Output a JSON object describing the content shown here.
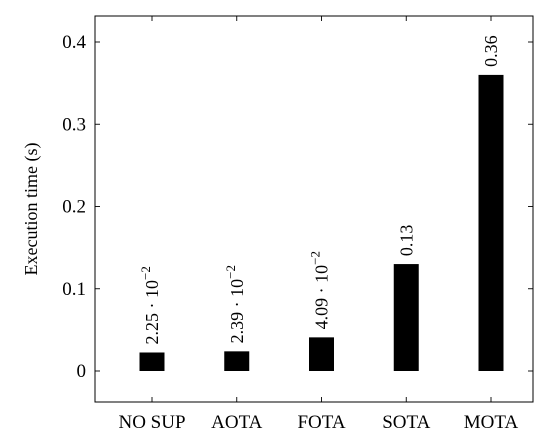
{
  "chart_data": {
    "type": "bar",
    "categories": [
      "NO SUP",
      "AOTA",
      "FOTA",
      "SOTA",
      "MOTA"
    ],
    "values": [
      0.0225,
      0.0239,
      0.0409,
      0.13,
      0.36
    ],
    "data_labels": [
      {
        "base": "2.25 · 10",
        "exp": "−2"
      },
      {
        "base": "2.39 · 10",
        "exp": "−2"
      },
      {
        "base": "4.09 · 10",
        "exp": "−2"
      },
      {
        "base": "0.13",
        "exp": ""
      },
      {
        "base": "0.36",
        "exp": ""
      }
    ],
    "title": "",
    "xlabel": "",
    "ylabel": "Execution time (s)",
    "ylim": [
      0,
      0.4
    ],
    "yticks": [
      0,
      0.1,
      0.2,
      0.3,
      0.4
    ],
    "ytick_labels": [
      "0",
      "0.1",
      "0.2",
      "0.3",
      "0.4"
    ],
    "grid": false,
    "bar_color": "#000000"
  }
}
